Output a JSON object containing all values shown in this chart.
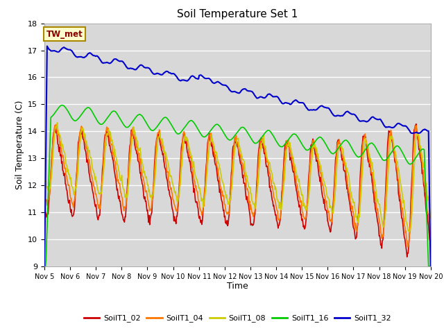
{
  "title": "Soil Temperature Set 1",
  "xlabel": "Time",
  "ylabel": "Soil Temperature (C)",
  "ylim": [
    9.0,
    18.0
  ],
  "yticks": [
    9.0,
    10.0,
    11.0,
    12.0,
    13.0,
    14.0,
    15.0,
    16.0,
    17.0,
    18.0
  ],
  "xtick_labels": [
    "Nov 5",
    "Nov 6",
    "Nov 7",
    "Nov 8",
    "Nov 9",
    "Nov 10",
    "Nov 11",
    "Nov 12",
    "Nov 13",
    "Nov 14",
    "Nov 15",
    "Nov 16",
    "Nov 17",
    "Nov 18",
    "Nov 19",
    "Nov 20"
  ],
  "legend_labels": [
    "SoilT1_02",
    "SoilT1_04",
    "SoilT1_08",
    "SoilT1_16",
    "SoilT1_32"
  ],
  "line_colors": [
    "#cc0000",
    "#ff7700",
    "#cccc00",
    "#00cc00",
    "#0000cc"
  ],
  "line_widths": [
    1.2,
    1.2,
    1.2,
    1.2,
    1.5
  ],
  "annotation_text": "TW_met",
  "fig_bg_color": "#ffffff",
  "plot_bg_color": "#d8d8d8",
  "grid_color": "#ffffff",
  "n_points": 720
}
